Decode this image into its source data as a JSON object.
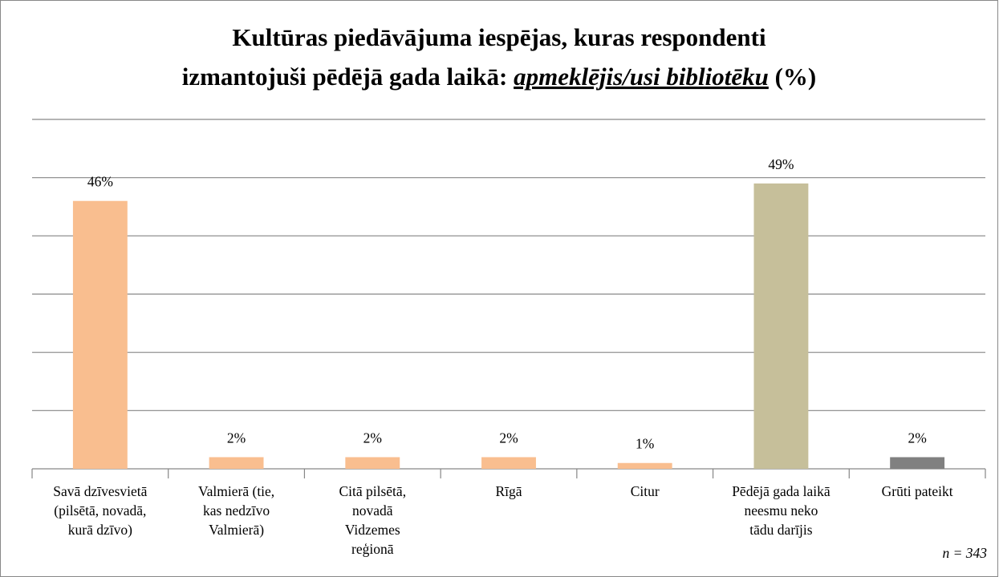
{
  "chart_data": {
    "type": "bar",
    "title": [
      "Kultūras piedāvājuma iespējas, kuras respondenti",
      "izmantojuši pēdējā gada laikā: ",
      "apmeklējis/usi bibliotēku",
      " (%)"
    ],
    "categories": [
      [
        "Savā dzīvesvietā",
        "(pilsētā, novadā,",
        "kurā dzīvo)"
      ],
      [
        "Valmierā (tie,",
        "kas nedzīvo",
        "Valmierā)"
      ],
      [
        "Citā pilsētā,",
        "novadā",
        "Vidzemes",
        "reģionā"
      ],
      [
        "Rīgā"
      ],
      [
        "Citur"
      ],
      [
        "Pēdējā gada laikā",
        "neesmu neko",
        "tādu darījis"
      ],
      [
        "Grūti pateikt"
      ]
    ],
    "values": [
      46,
      2,
      2,
      2,
      1,
      49,
      2
    ],
    "value_labels": [
      "46%",
      "2%",
      "2%",
      "2%",
      "1%",
      "49%",
      "2%"
    ],
    "colors": [
      "#f9be8f",
      "#f9be8f",
      "#f9be8f",
      "#f9be8f",
      "#f9be8f",
      "#c6bf9a",
      "#808080"
    ],
    "ylim": [
      0,
      60
    ],
    "yticks": [
      0,
      10,
      20,
      30,
      40,
      50,
      60
    ],
    "grid": true,
    "annotation": "n = 343"
  }
}
